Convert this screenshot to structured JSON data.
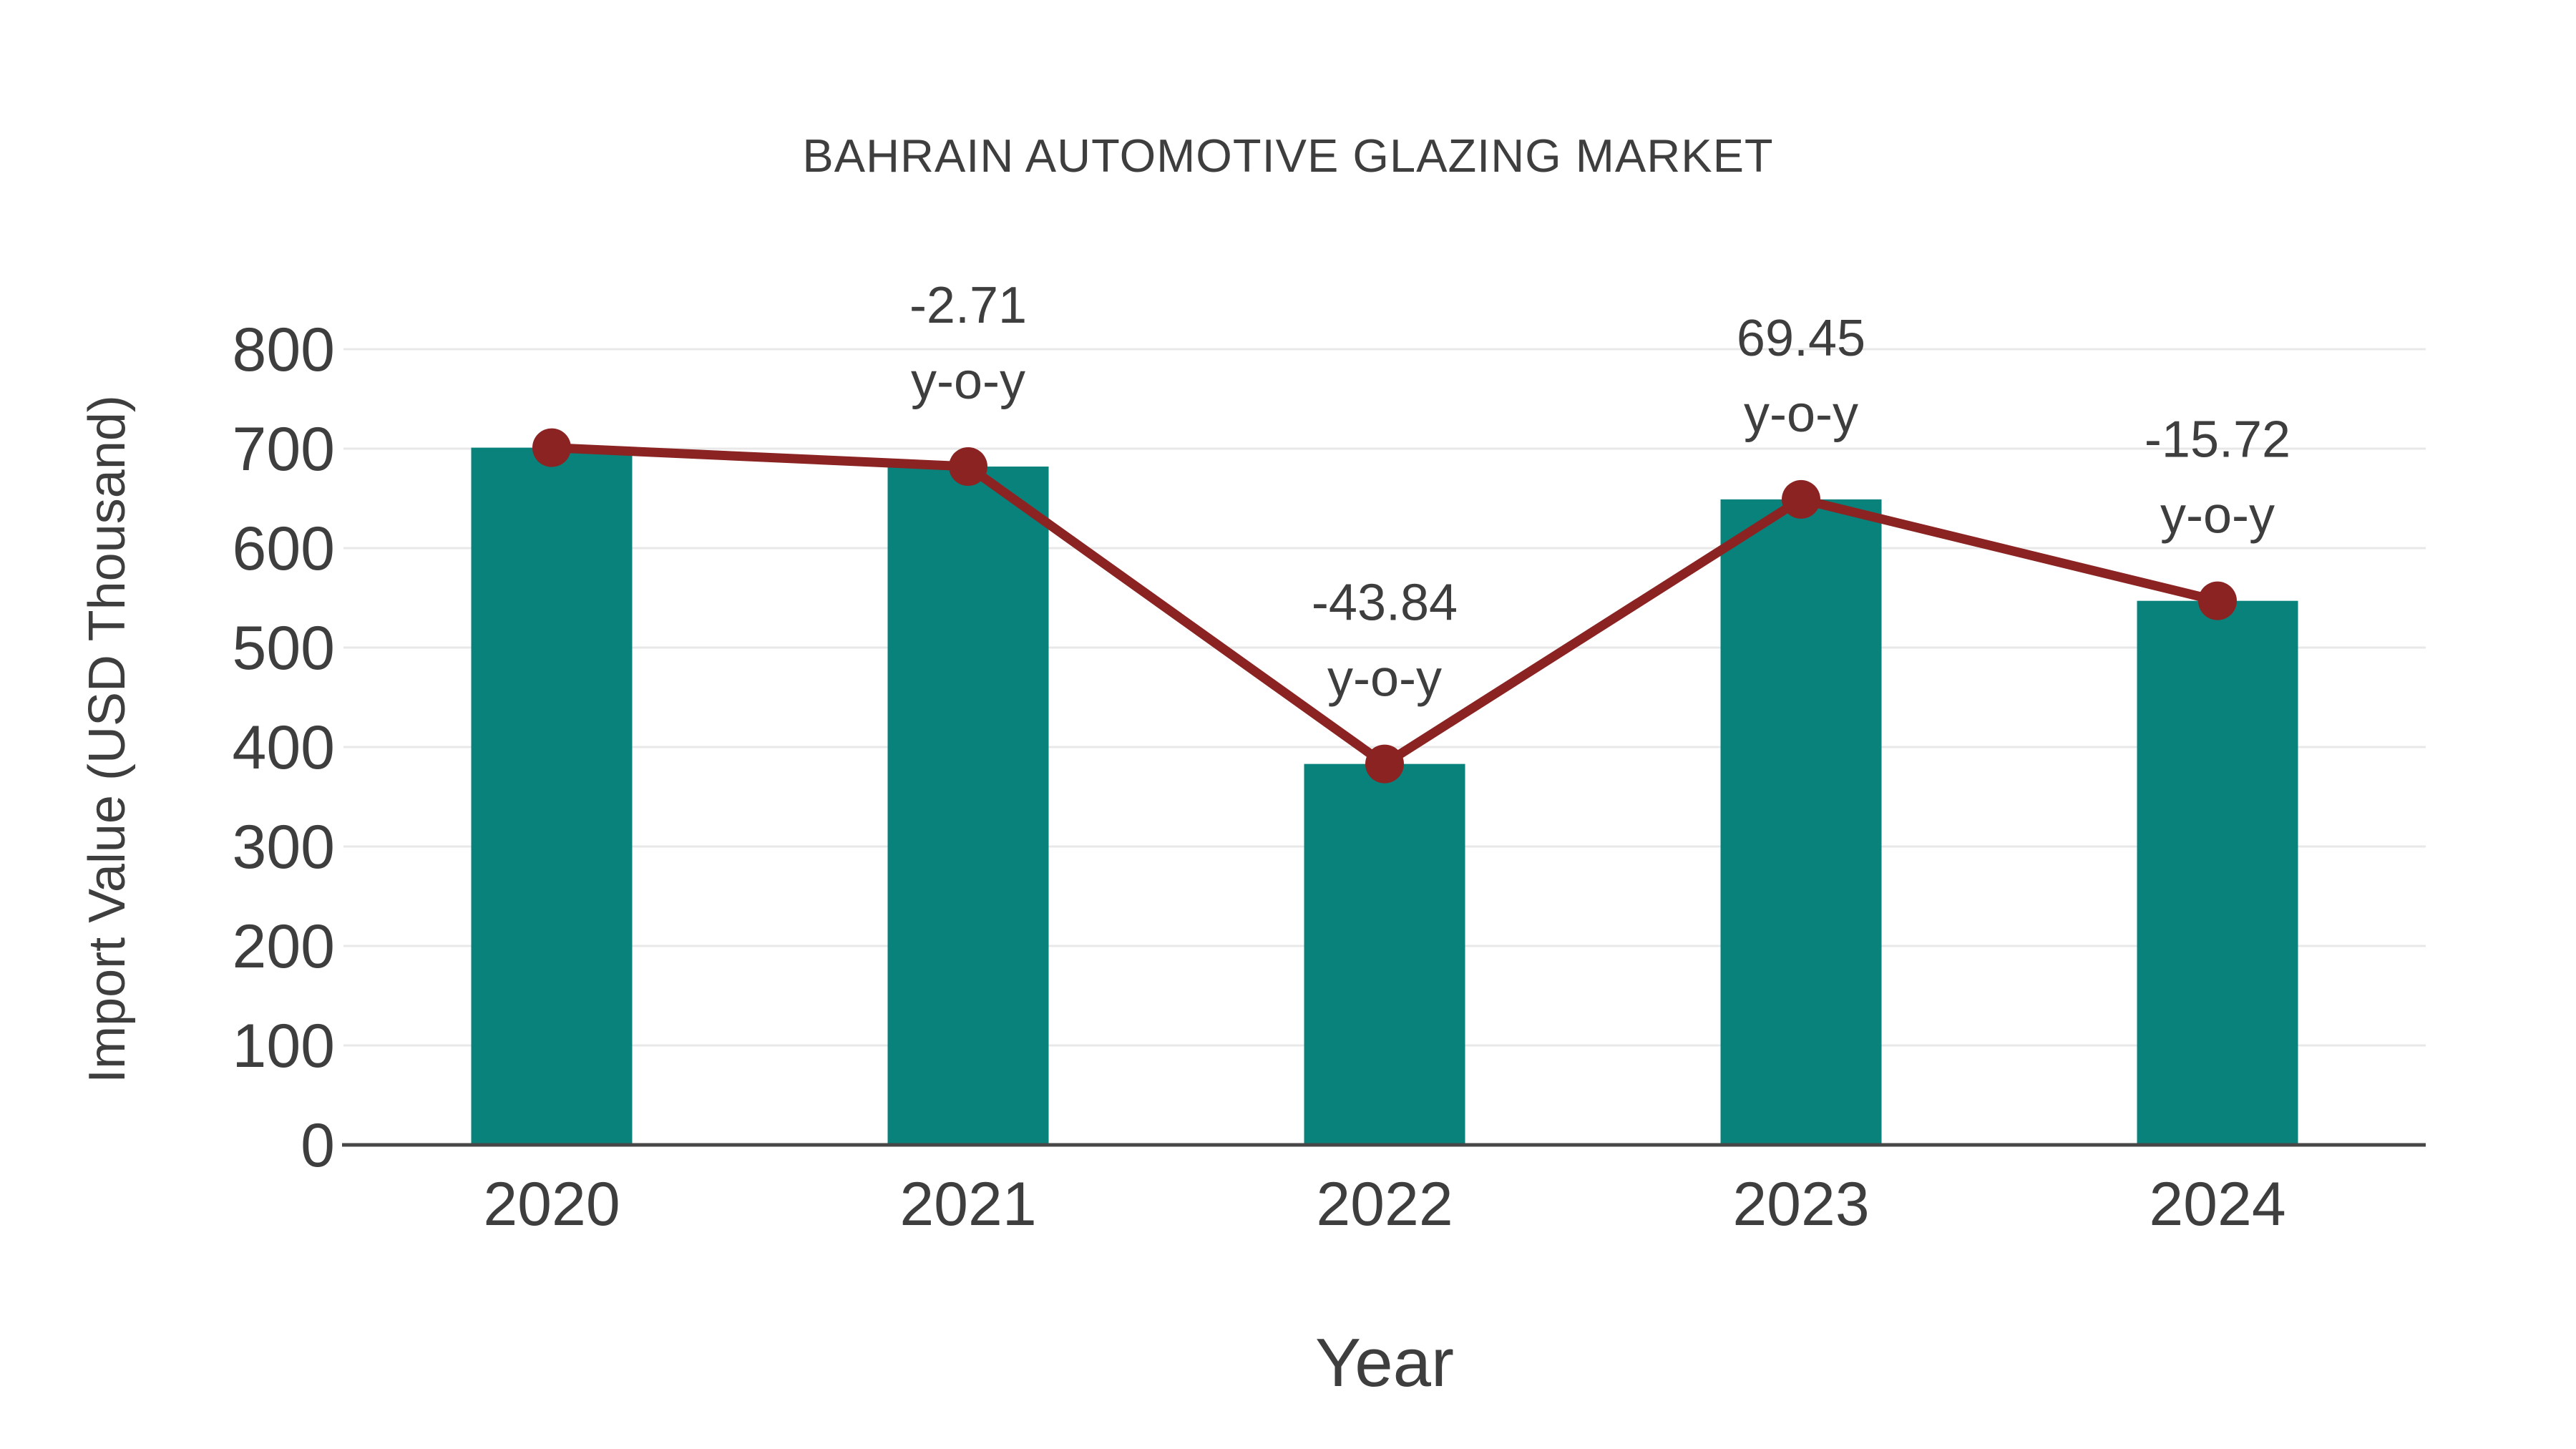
{
  "chart_data": {
    "type": "bar",
    "title": "BAHRAIN AUTOMOTIVE GLAZING MARKET",
    "xlabel": "Year",
    "ylabel": "Import Value (USD Thousand)",
    "categories": [
      "2020",
      "2021",
      "2022",
      "2023",
      "2024"
    ],
    "series": [
      {
        "name": "Import Value",
        "type": "bar",
        "values": [
          701,
          682,
          383,
          649,
          547
        ]
      },
      {
        "name": "Import Value trend",
        "type": "line",
        "values": [
          701,
          682,
          383,
          649,
          547
        ]
      }
    ],
    "annotations": [
      {
        "category": "2021",
        "value": "-2.71",
        "suffix": "y-o-y"
      },
      {
        "category": "2022",
        "value": "-43.84",
        "suffix": "y-o-y"
      },
      {
        "category": "2023",
        "value": "69.45",
        "suffix": "y-o-y"
      },
      {
        "category": "2024",
        "value": "-15.72",
        "suffix": "y-o-y"
      }
    ],
    "yticks": [
      0,
      100,
      200,
      300,
      400,
      500,
      600,
      700,
      800
    ],
    "ylim": [
      0,
      800
    ],
    "grid": "horizontal",
    "legend": "none",
    "colors": {
      "bar": "#0a827c",
      "line": "#8a2322",
      "text": "#3e3e3e",
      "grid": "#e8e8e8",
      "axis": "#474747",
      "background": "#ffffff"
    }
  }
}
